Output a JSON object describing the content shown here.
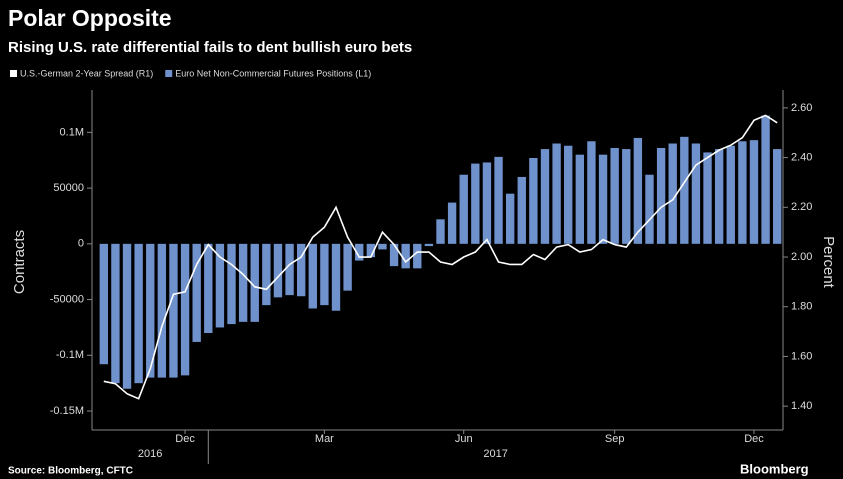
{
  "chart_data": {
    "type": "combo",
    "title": "Polar Opposite",
    "subtitle": "Rising U.S. rate differential fails to dent bullish euro bets",
    "y_label": "Contracts",
    "y2_label": "Percent",
    "source": "Source: Bloomberg, CFTC",
    "brand": "Bloomberg",
    "categories": [
      null,
      null,
      null,
      null,
      null,
      null,
      null,
      "Dec",
      null,
      null,
      null,
      null,
      null,
      null,
      null,
      null,
      null,
      null,
      null,
      "Mar",
      null,
      null,
      null,
      null,
      null,
      null,
      null,
      null,
      null,
      null,
      null,
      "Jun",
      null,
      null,
      null,
      null,
      null,
      null,
      null,
      null,
      null,
      null,
      null,
      null,
      "Sep",
      null,
      null,
      null,
      null,
      null,
      null,
      null,
      null,
      null,
      null,
      null,
      "Dec",
      null,
      null
    ],
    "years": [
      "2016",
      "2017"
    ],
    "series": [
      {
        "name": "U.S.-German 2-Year Spread (R1)",
        "color": "#ffffff",
        "type": "line",
        "axis": "y2",
        "values": [
          1.5,
          1.49,
          1.45,
          1.43,
          1.55,
          1.72,
          1.85,
          1.86,
          1.97,
          2.05,
          2.0,
          1.97,
          1.93,
          1.88,
          1.87,
          1.92,
          1.97,
          2.0,
          2.08,
          2.12,
          2.2,
          2.08,
          2.0,
          2.0,
          2.1,
          2.05,
          1.98,
          2.02,
          2.02,
          1.98,
          1.97,
          2.0,
          2.02,
          2.07,
          1.98,
          1.97,
          1.97,
          2.01,
          1.99,
          2.04,
          2.05,
          2.02,
          2.03,
          2.07,
          2.05,
          2.04,
          2.1,
          2.15,
          2.2,
          2.23,
          2.3,
          2.37,
          2.4,
          2.43,
          2.45,
          2.48,
          2.55,
          2.57,
          2.54
        ]
      },
      {
        "name": "Euro Net Non-Commercial Futures Positions (L1)",
        "color": "#7092cc",
        "type": "bar",
        "axis": "y",
        "values": [
          -108000,
          -125000,
          -130000,
          -125000,
          -120000,
          -120000,
          -120000,
          -118000,
          -88000,
          -80000,
          -75000,
          -72000,
          -70000,
          -70000,
          -55000,
          -48000,
          -46000,
          -47000,
          -58000,
          -55000,
          -60000,
          -42000,
          -15000,
          -12000,
          -5000,
          -20000,
          -22000,
          -22000,
          -2000,
          22000,
          37000,
          62000,
          72000,
          73000,
          78000,
          45000,
          60000,
          77000,
          85000,
          90000,
          88000,
          80000,
          92000,
          80000,
          86000,
          85000,
          95000,
          62000,
          86000,
          90000,
          96000,
          90000,
          82000,
          85000,
          88000,
          92000,
          93000,
          115000,
          85000
        ]
      }
    ],
    "ylim": [
      -167000,
      138000
    ],
    "yticks": [
      {
        "value": -150000,
        "label": "-0.15M"
      },
      {
        "value": -100000,
        "label": "-0.1M"
      },
      {
        "value": -50000,
        "label": "-50000"
      },
      0,
      50000,
      {
        "value": 100000,
        "label": "0.1M"
      }
    ],
    "y2lim": [
      1.304,
      2.672
    ],
    "y2ticks": [
      {
        "value": 1.4,
        "label": "1.40"
      },
      {
        "value": 1.6,
        "label": "1.60"
      },
      {
        "value": 1.8,
        "label": "1.80"
      },
      {
        "value": 2.0,
        "label": "2.00"
      },
      {
        "value": 2.2,
        "label": "2.20"
      },
      {
        "value": 2.4,
        "label": "2.40"
      },
      {
        "value": 2.6,
        "label": "2.60"
      }
    ],
    "grid": false
  }
}
